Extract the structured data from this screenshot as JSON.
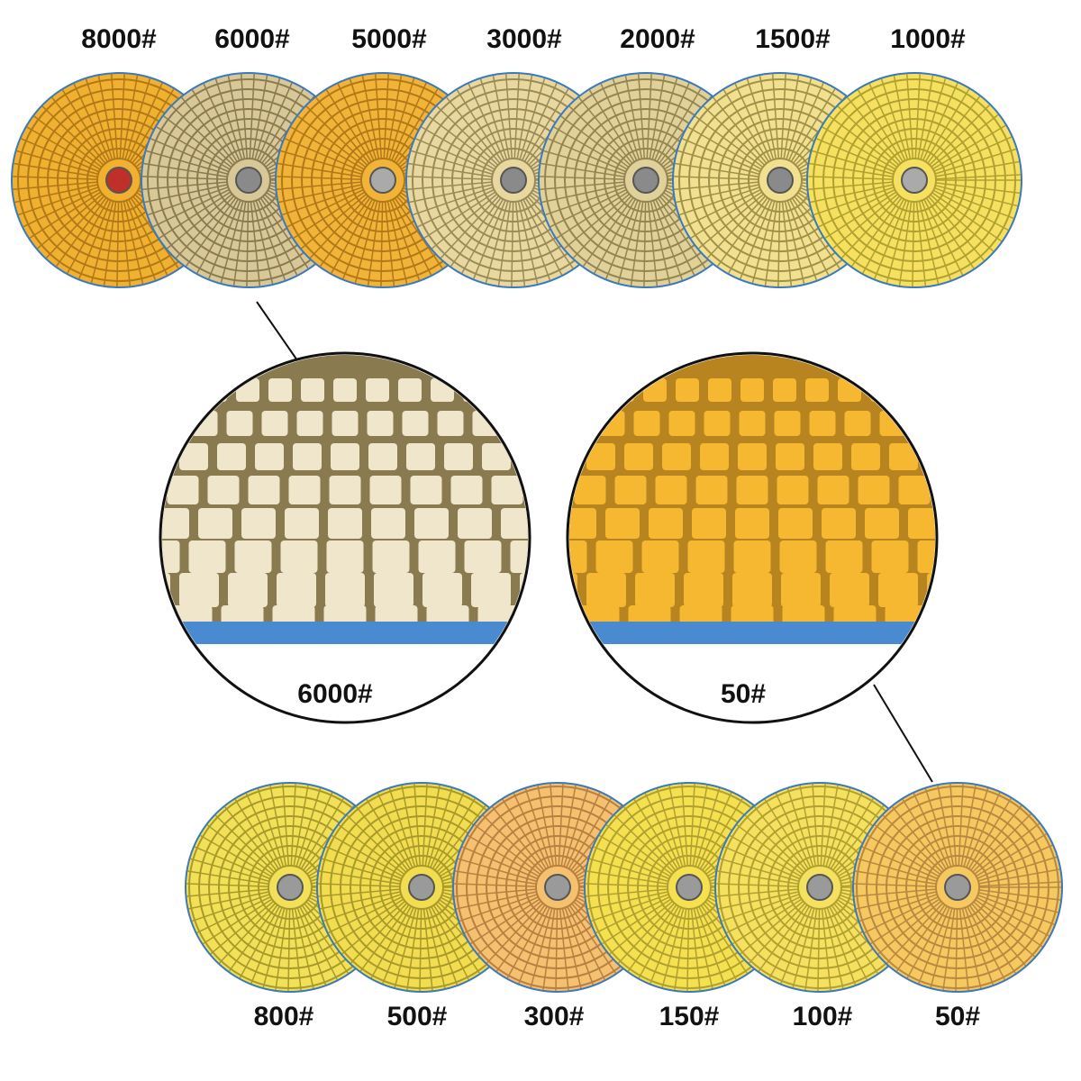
{
  "top_row": {
    "labels": [
      "8000#",
      "6000#",
      "5000#",
      "3000#",
      "2000#",
      "1500#",
      "1000#"
    ]
  },
  "zoom": {
    "left_label": "6000#",
    "right_label": "50#"
  },
  "bottom_row": {
    "labels": [
      "800#",
      "500#",
      "300#",
      "150#",
      "100#",
      "50#"
    ]
  }
}
